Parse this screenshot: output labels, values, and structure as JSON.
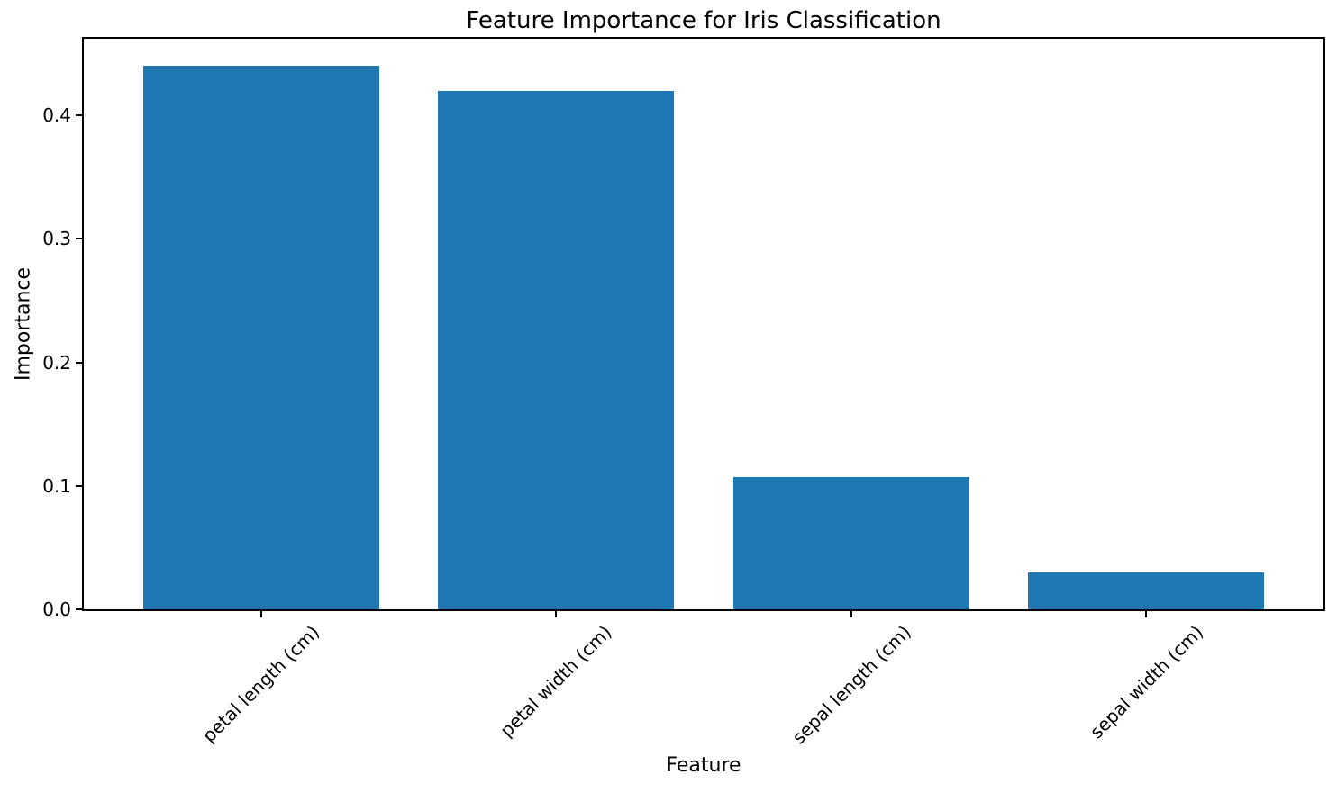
{
  "chart_data": {
    "type": "bar",
    "title": "Feature Importance for Iris Classification",
    "xlabel": "Feature",
    "ylabel": "Importance",
    "categories": [
      "petal length (cm)",
      "petal width (cm)",
      "sepal length (cm)",
      "sepal width (cm)"
    ],
    "values": [
      0.44,
      0.42,
      0.107,
      0.03
    ],
    "bar_color": "#1f77b4",
    "axis_color": "#000000",
    "text_color": "#000000",
    "ylim": [
      0,
      0.462
    ],
    "xlim": [
      -0.6,
      3.6
    ],
    "bar_width": 0.8,
    "ytick_values": [
      0.0,
      0.1,
      0.2,
      0.3,
      0.4
    ],
    "ytick_labels": [
      "0.0",
      "0.1",
      "0.2",
      "0.3",
      "0.4"
    ],
    "xtick_rotation_deg": 45,
    "grid": false,
    "legend_position": "none",
    "background_color": "#ffffff"
  }
}
